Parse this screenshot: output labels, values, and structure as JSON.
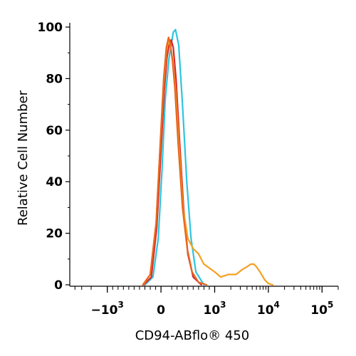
{
  "chart_data": {
    "type": "line",
    "title": "",
    "xlabel": "CD94-ABflo® 450",
    "ylabel": "Relative Cell Number",
    "x_scale": "biexponential",
    "xlim": [
      -5000,
      200000
    ],
    "ylim": [
      0,
      100
    ],
    "y_ticks": [
      "0",
      "20",
      "40",
      "60",
      "80",
      "100"
    ],
    "x_ticks": [
      {
        "value": -1000,
        "base": "−10",
        "exp": "3"
      },
      {
        "value": 0,
        "base": "0",
        "exp": ""
      },
      {
        "value": 1000,
        "base": "10",
        "exp": "3"
      },
      {
        "value": 10000,
        "base": "10",
        "exp": "4"
      },
      {
        "value": 100000,
        "base": "10",
        "exp": "5"
      }
    ],
    "grid": false,
    "legend": "none",
    "series": [
      {
        "color": "#2ec4e0",
        "x": [
          -300,
          -150,
          -50,
          20,
          80,
          150,
          190,
          230,
          270,
          330,
          400,
          480,
          560,
          650,
          800
        ],
        "y": [
          0,
          3,
          18,
          45,
          72,
          88,
          93,
          98,
          99,
          93,
          70,
          40,
          18,
          5,
          0
        ]
      },
      {
        "color": "#d62728",
        "x": [
          -320,
          -180,
          -80,
          0,
          60,
          110,
          150,
          190,
          230,
          280,
          340,
          420,
          500,
          600,
          750
        ],
        "y": [
          0,
          3,
          22,
          52,
          75,
          88,
          93,
          95,
          92,
          80,
          58,
          30,
          12,
          3,
          0
        ]
      },
      {
        "color": "#f5a020",
        "x": [
          -330,
          -200,
          -90,
          -10,
          50,
          100,
          140,
          180,
          220,
          270,
          330,
          410,
          500,
          600,
          700,
          800,
          1000,
          1300,
          1800,
          2500,
          3300,
          4000,
          4700,
          5400,
          6000,
          7000,
          8500,
          10000,
          12000
        ],
        "y": [
          0,
          4,
          24,
          55,
          78,
          90,
          95,
          92,
          86,
          76,
          56,
          30,
          18,
          14,
          12,
          8,
          5,
          3,
          4,
          4,
          6,
          7,
          8,
          8,
          7,
          5,
          2,
          0.5,
          0
        ]
      },
      {
        "color": "#e8671e",
        "x": [
          -340,
          -200,
          -90,
          -10,
          50,
          100,
          140,
          170,
          210,
          260,
          320,
          400,
          490,
          580,
          700,
          850
        ],
        "y": [
          0,
          4,
          24,
          56,
          80,
          92,
          96,
          94,
          88,
          76,
          55,
          30,
          14,
          5,
          1,
          0
        ]
      }
    ]
  }
}
